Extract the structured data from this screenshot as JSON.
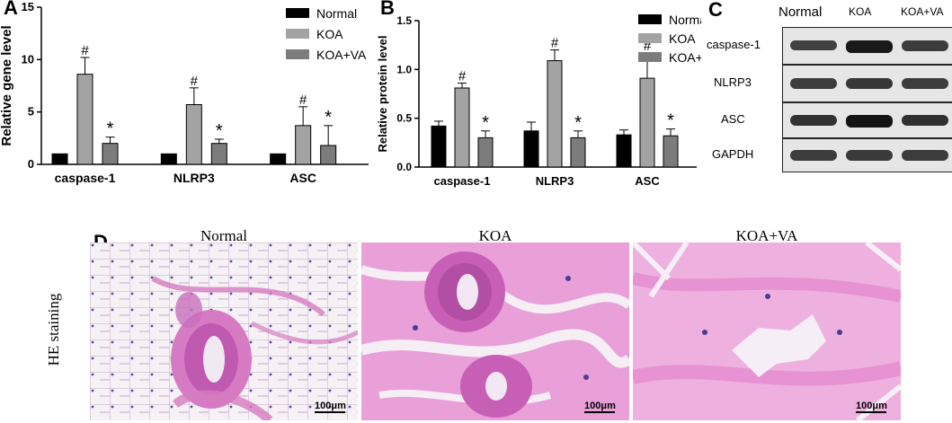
{
  "panels": {
    "A": "A",
    "B": "B",
    "C": "C",
    "D": "D"
  },
  "series_colors": {
    "Normal": "#000000",
    "KOA": "#a3a3a3",
    "KOA+VA": "#7c7c7c"
  },
  "chart_data": [
    {
      "type": "bar",
      "panel": "A",
      "ylabel": "Relative gene level",
      "xlabel": "",
      "ylim": [
        0,
        15
      ],
      "yticks": [
        0,
        5,
        10,
        15
      ],
      "categories": [
        "caspase-1",
        "NLRP3",
        "ASC"
      ],
      "series": [
        {
          "name": "Normal",
          "values": [
            1.0,
            1.0,
            1.0
          ],
          "errors": [
            0,
            0,
            0
          ]
        },
        {
          "name": "KOA",
          "values": [
            8.6,
            5.7,
            3.7
          ],
          "errors": [
            1.6,
            1.6,
            1.8
          ]
        },
        {
          "name": "KOA+VA",
          "values": [
            2.0,
            2.0,
            1.8
          ],
          "errors": [
            0.6,
            0.4,
            1.9
          ]
        }
      ],
      "annotations": {
        "KOA": [
          "#",
          "#",
          "#"
        ],
        "KOA+VA": [
          "*",
          "*",
          "*"
        ]
      },
      "legend": "top-right",
      "grid": false
    },
    {
      "type": "bar",
      "panel": "B",
      "ylabel": "Relative protein level",
      "xlabel": "",
      "ylim": [
        0,
        1.5
      ],
      "yticks": [
        "0.0",
        "0.5",
        "1.0",
        "1.5"
      ],
      "categories": [
        "caspase-1",
        "NLRP3",
        "ASC"
      ],
      "series": [
        {
          "name": "Normal",
          "values": [
            0.42,
            0.37,
            0.33
          ],
          "errors": [
            0.05,
            0.09,
            0.05
          ]
        },
        {
          "name": "KOA",
          "values": [
            0.81,
            1.09,
            0.91
          ],
          "errors": [
            0.05,
            0.11,
            0.26
          ]
        },
        {
          "name": "KOA+VA",
          "values": [
            0.3,
            0.3,
            0.32
          ],
          "errors": [
            0.07,
            0.07,
            0.07
          ]
        }
      ],
      "annotations": {
        "KOA": [
          "#",
          "#",
          "#"
        ],
        "KOA+VA": [
          "*",
          "*",
          "*"
        ]
      },
      "legend": "top-right",
      "grid": false
    }
  ],
  "blot": {
    "columns": [
      "Normal",
      "KOA",
      "KOA+VA"
    ],
    "rows": [
      {
        "label": "caspase-1",
        "intensity": [
          0.55,
          0.95,
          0.6
        ]
      },
      {
        "label": "NLRP3",
        "intensity": [
          0.6,
          0.65,
          0.6
        ]
      },
      {
        "label": "ASC",
        "intensity": [
          0.7,
          1.0,
          0.72
        ]
      },
      {
        "label": "GAPDH",
        "intensity": [
          0.6,
          0.62,
          0.6
        ]
      }
    ]
  },
  "histology": {
    "side_label": "HE staining",
    "titles": [
      "Normal",
      "KOA",
      "KOA+VA"
    ],
    "scale_bar": "100μm"
  }
}
